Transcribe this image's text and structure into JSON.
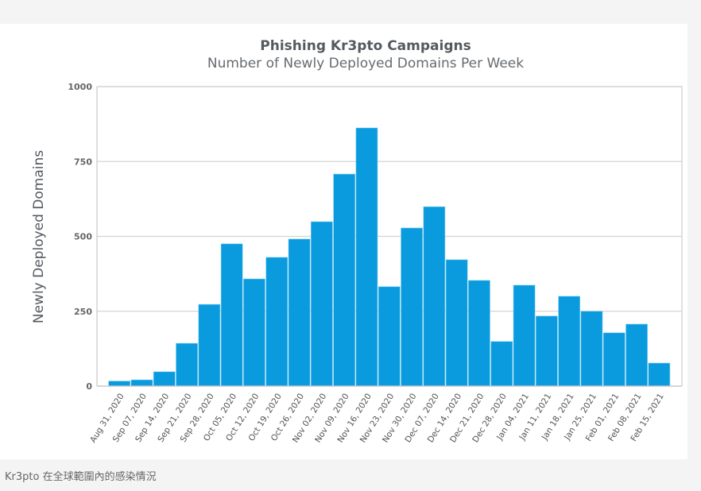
{
  "chart_data": {
    "type": "bar",
    "title": "Phishing Kr3pto Campaigns",
    "subtitle": "Number of Newly Deployed Domains Per Week",
    "xlabel": "",
    "ylabel": "Newly Deployed Domains",
    "ylim": [
      0,
      1000
    ],
    "yticks": [
      0,
      250,
      500,
      750,
      1000
    ],
    "ytick_labels": [
      "0",
      "250",
      "500",
      "750",
      "1000"
    ],
    "grid": true,
    "bar_color": "#0a9ade",
    "categories": [
      "Aug 31, 2020",
      "Sep 07, 2020",
      "Sep 14, 2020",
      "Sep 21, 2020",
      "Sep 28, 2020",
      "Oct 05, 2020",
      "Oct 12, 2020",
      "Oct 19, 2020",
      "Oct 26, 2020",
      "Nov 02, 2020",
      "Nov 09, 2020",
      "Nov 16, 2020",
      "Nov 23, 2020",
      "Nov 30, 2020",
      "Dec 07, 2020",
      "Dec 14, 2020",
      "Dec 21, 2020",
      "Dec 28, 2020",
      "Jan 04, 2021",
      "Jan 11, 2021",
      "Jan 18, 2021",
      "Jan 25, 2021",
      "Feb 01, 2021",
      "Feb 08, 2021",
      "Feb 15, 2021"
    ],
    "values": [
      17,
      21,
      48,
      143,
      273,
      475,
      358,
      430,
      491,
      549,
      708,
      862,
      332,
      528,
      599,
      422,
      353,
      149,
      337,
      234,
      300,
      250,
      178,
      207,
      77
    ]
  },
  "caption": "Kr3pto 在全球範圍內的感染情況"
}
